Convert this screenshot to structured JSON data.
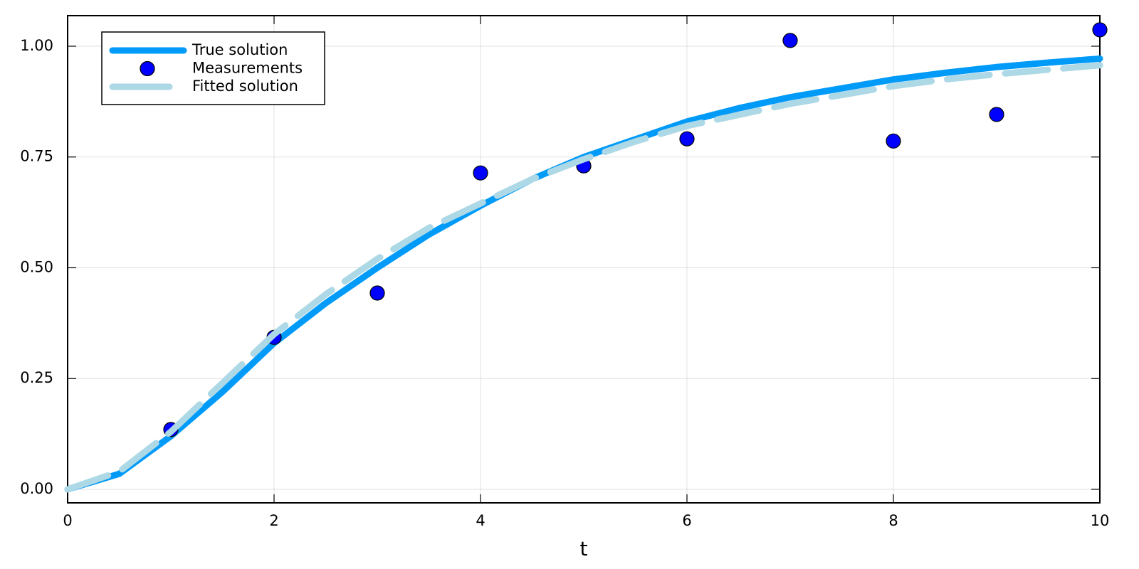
{
  "chart_data": {
    "type": "line",
    "xlabel": "t",
    "xlim": [
      0,
      10
    ],
    "xticks": [
      0,
      2,
      4,
      6,
      8,
      10
    ],
    "ylim": [
      -0.0305,
      1.069
    ],
    "yticks": [
      {
        "value": 0,
        "label": "0.00"
      },
      {
        "value": 0.25,
        "label": "0.25"
      },
      {
        "value": 0.5,
        "label": "0.50"
      },
      {
        "value": 0.75,
        "label": "0.75"
      },
      {
        "value": 1,
        "label": "1.00"
      }
    ],
    "grid": true,
    "legend": "top-left",
    "series": [
      {
        "name": "True solution",
        "color": "#009af9",
        "mode": "line",
        "dash": false,
        "x": [
          0,
          0.5,
          1,
          1.5,
          2,
          2.5,
          3,
          3.5,
          4,
          4.5,
          5,
          5.5,
          6,
          6.5,
          7,
          7.5,
          8,
          8.5,
          9,
          9.5,
          10
        ],
        "values": [
          0,
          0.035,
          0.12,
          0.22,
          0.33,
          0.42,
          0.5,
          0.575,
          0.64,
          0.7,
          0.75,
          0.79,
          0.83,
          0.86,
          0.885,
          0.905,
          0.925,
          0.94,
          0.953,
          0.963,
          0.972
        ]
      },
      {
        "name": "Measurements",
        "color": "#0000ff",
        "mode": "markers",
        "dash": false,
        "x": [
          1,
          2,
          3,
          4,
          5,
          6,
          7,
          8,
          9,
          10
        ],
        "values": [
          0.135,
          0.343,
          0.443,
          0.714,
          0.73,
          0.791,
          1.013,
          0.786,
          0.846,
          1.037
        ]
      },
      {
        "name": "Fitted solution",
        "color": "#add8e6",
        "mode": "line",
        "dash": true,
        "x": [
          0,
          0.5,
          1,
          1.5,
          2,
          2.5,
          3,
          3.5,
          4,
          4.5,
          5,
          5.5,
          6,
          6.5,
          7,
          7.5,
          8,
          8.5,
          9,
          9.5,
          10
        ],
        "values": [
          0,
          0.04,
          0.13,
          0.24,
          0.35,
          0.44,
          0.52,
          0.59,
          0.645,
          0.7,
          0.745,
          0.785,
          0.82,
          0.845,
          0.87,
          0.89,
          0.91,
          0.925,
          0.937,
          0.947,
          0.957
        ]
      }
    ]
  }
}
